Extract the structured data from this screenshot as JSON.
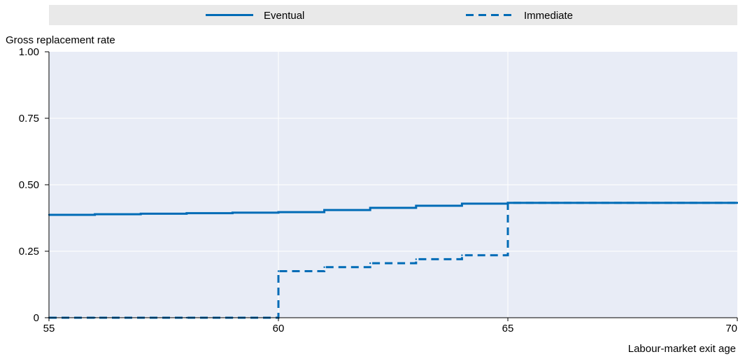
{
  "chart_data": {
    "type": "line",
    "step": true,
    "ylabel": "Gross replacement rate",
    "xlabel": "Labour-market exit age",
    "xlim": [
      55,
      70
    ],
    "ylim": [
      0,
      1
    ],
    "x_ticks": [
      55,
      60,
      65,
      70
    ],
    "x_tick_labels": [
      "55",
      "60",
      "65",
      "70"
    ],
    "y_ticks": [
      0,
      0.25,
      0.5,
      0.75,
      1
    ],
    "y_tick_labels": [
      "0",
      "0.25",
      "0.50",
      "0.75",
      "1.00"
    ],
    "grid": true,
    "legend_position": "top",
    "series": [
      {
        "name": "Eventual",
        "style": "solid",
        "color": "#006BB6",
        "x": [
          55,
          56,
          57,
          58,
          59,
          60,
          61,
          62,
          63,
          64,
          65,
          66,
          67,
          68,
          69,
          70
        ],
        "y": [
          0.387,
          0.389,
          0.391,
          0.393,
          0.395,
          0.397,
          0.405,
          0.413,
          0.421,
          0.429,
          0.432,
          0.432,
          0.432,
          0.432,
          0.432,
          0.432
        ]
      },
      {
        "name": "Immediate",
        "style": "dashed",
        "color": "#006BB6",
        "x": [
          55,
          56,
          57,
          58,
          59,
          60,
          61,
          62,
          63,
          64,
          65,
          66,
          67,
          68,
          69,
          70
        ],
        "y": [
          0,
          0,
          0,
          0,
          0,
          0.175,
          0.19,
          0.205,
          0.22,
          0.235,
          0.432,
          0.432,
          0.432,
          0.432,
          0.432,
          0.432
        ]
      }
    ]
  },
  "colors": {
    "plot_background": "#E8ECF6",
    "legend_background": "#E9E9E9",
    "grid": "#FFFFFF",
    "axis": "#000000"
  }
}
